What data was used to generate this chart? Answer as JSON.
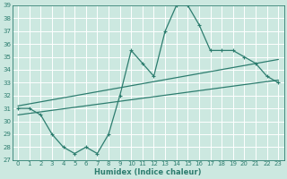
{
  "bg_color": "#cce8e0",
  "grid_color": "#aad4cc",
  "line_color": "#2d7d6f",
  "xlim": [
    -0.5,
    23.5
  ],
  "ylim": [
    27,
    39
  ],
  "xlabel": "Humidex (Indice chaleur)",
  "xticks": [
    0,
    1,
    2,
    3,
    4,
    5,
    6,
    7,
    8,
    9,
    10,
    11,
    12,
    13,
    14,
    15,
    16,
    17,
    18,
    19,
    20,
    21,
    22,
    23
  ],
  "yticks": [
    27,
    28,
    29,
    30,
    31,
    32,
    33,
    34,
    35,
    36,
    37,
    38,
    39
  ],
  "zigzag_x": [
    0,
    1,
    2,
    3,
    4,
    5,
    6,
    7,
    8,
    9,
    10,
    11,
    12,
    13,
    14,
    15,
    16,
    17,
    18,
    19,
    20,
    21,
    22,
    23
  ],
  "zigzag_y": [
    31,
    31,
    30.5,
    29,
    28,
    27.5,
    28,
    27.5,
    29.0,
    32.0,
    35.5,
    34.5,
    33.5,
    37.0,
    39.0,
    39.0,
    37.5,
    35.5,
    35.5,
    35.5,
    35.0,
    34.5,
    33.5,
    33.0
  ],
  "trend1_x": [
    0,
    23
  ],
  "trend1_y": [
    31.2,
    34.8
  ],
  "trend2_x": [
    0,
    23
  ],
  "trend2_y": [
    30.5,
    33.2
  ],
  "marker_size": 2.5,
  "linewidth": 0.9,
  "axis_fontsize": 6,
  "tick_fontsize": 5
}
